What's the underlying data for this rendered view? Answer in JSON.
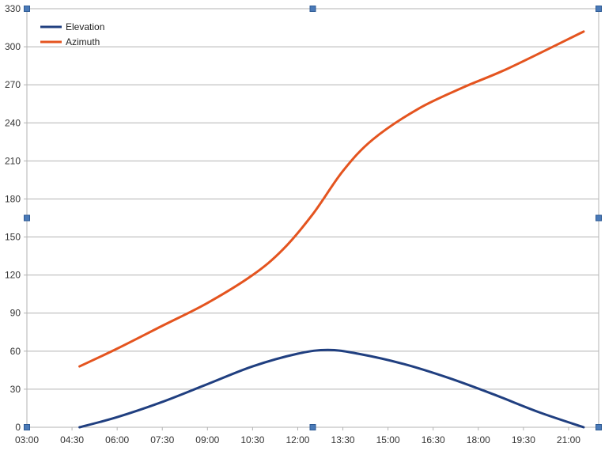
{
  "chart_data": {
    "type": "line",
    "x_ticks": [
      "03:00",
      "04:30",
      "06:00",
      "07:30",
      "09:00",
      "10:30",
      "12:00",
      "13:30",
      "15:00",
      "16:30",
      "18:00",
      "19:30",
      "21:00"
    ],
    "xlim_hours": [
      3,
      22
    ],
    "ylim": [
      0,
      330
    ],
    "y_ticks": [
      0,
      30,
      60,
      90,
      120,
      150,
      180,
      210,
      240,
      270,
      300,
      330
    ],
    "grid": true,
    "legend_position": "top-left",
    "series": [
      {
        "name": "Elevation",
        "color": "#203f80",
        "points": [
          {
            "t": 4.75,
            "v": 0
          },
          {
            "t": 6,
            "v": 8
          },
          {
            "t": 7.5,
            "v": 20
          },
          {
            "t": 9,
            "v": 34
          },
          {
            "t": 10.5,
            "v": 48
          },
          {
            "t": 12,
            "v": 58
          },
          {
            "t": 13,
            "v": 61
          },
          {
            "t": 14,
            "v": 58
          },
          {
            "t": 15.5,
            "v": 50
          },
          {
            "t": 17,
            "v": 39
          },
          {
            "t": 18.5,
            "v": 26
          },
          {
            "t": 20,
            "v": 12
          },
          {
            "t": 21.5,
            "v": 0
          }
        ]
      },
      {
        "name": "Azimuth",
        "color": "#e4541f",
        "points": [
          {
            "t": 4.75,
            "v": 48
          },
          {
            "t": 6,
            "v": 62
          },
          {
            "t": 7.5,
            "v": 80
          },
          {
            "t": 9,
            "v": 98
          },
          {
            "t": 10.5,
            "v": 120
          },
          {
            "t": 11.5,
            "v": 140
          },
          {
            "t": 12.5,
            "v": 168
          },
          {
            "t": 13.5,
            "v": 202
          },
          {
            "t": 14.5,
            "v": 227
          },
          {
            "t": 16,
            "v": 251
          },
          {
            "t": 17.5,
            "v": 268
          },
          {
            "t": 19,
            "v": 283
          },
          {
            "t": 21.5,
            "v": 312
          }
        ]
      }
    ]
  }
}
